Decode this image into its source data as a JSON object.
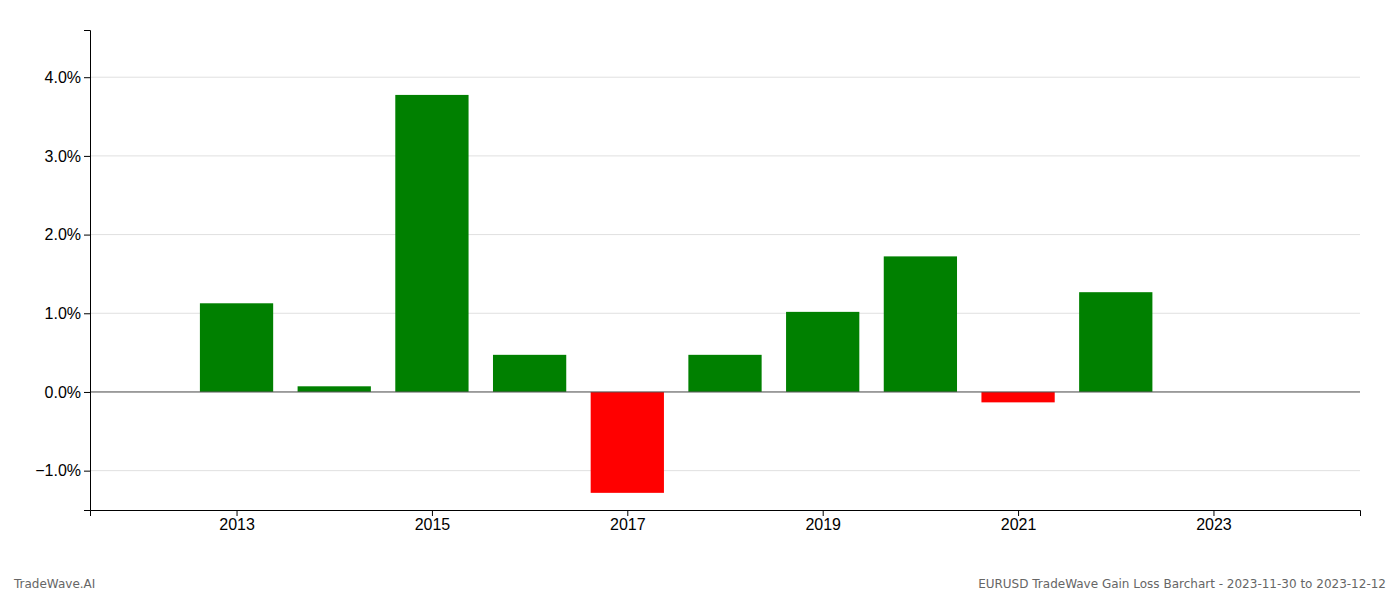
{
  "chart_data": {
    "type": "bar",
    "x": [
      2013,
      2014,
      2015,
      2016,
      2017,
      2018,
      2019,
      2020,
      2021,
      2022
    ],
    "values": [
      0.01127,
      0.00072,
      0.03775,
      0.00472,
      -0.01282,
      0.00472,
      0.01018,
      0.01723,
      -0.00132,
      0.01268
    ],
    "colors": [
      "#008000",
      "#008000",
      "#008000",
      "#008000",
      "#ff0000",
      "#008000",
      "#008000",
      "#008000",
      "#ff0000",
      "#008000"
    ],
    "xlim": [
      2011.5,
      2024.5
    ],
    "xticks": [
      2013,
      2015,
      2017,
      2019,
      2021,
      2023
    ],
    "ylim": [
      -0.015,
      0.046
    ],
    "yticks": [
      {
        "value": -0.01,
        "label": "−1.0%"
      },
      {
        "value": 0.0,
        "label": "0.0%"
      },
      {
        "value": 0.01,
        "label": "1.0%"
      },
      {
        "value": 0.02,
        "label": "2.0%"
      },
      {
        "value": 0.03,
        "label": "3.0%"
      },
      {
        "value": 0.04,
        "label": "4.0%"
      }
    ],
    "grid": true,
    "annotations": [
      "TradeWave.AI",
      "EURUSD TradeWave Gain Loss Barchart - 2023-11-30 to 2023-12-12"
    ]
  }
}
